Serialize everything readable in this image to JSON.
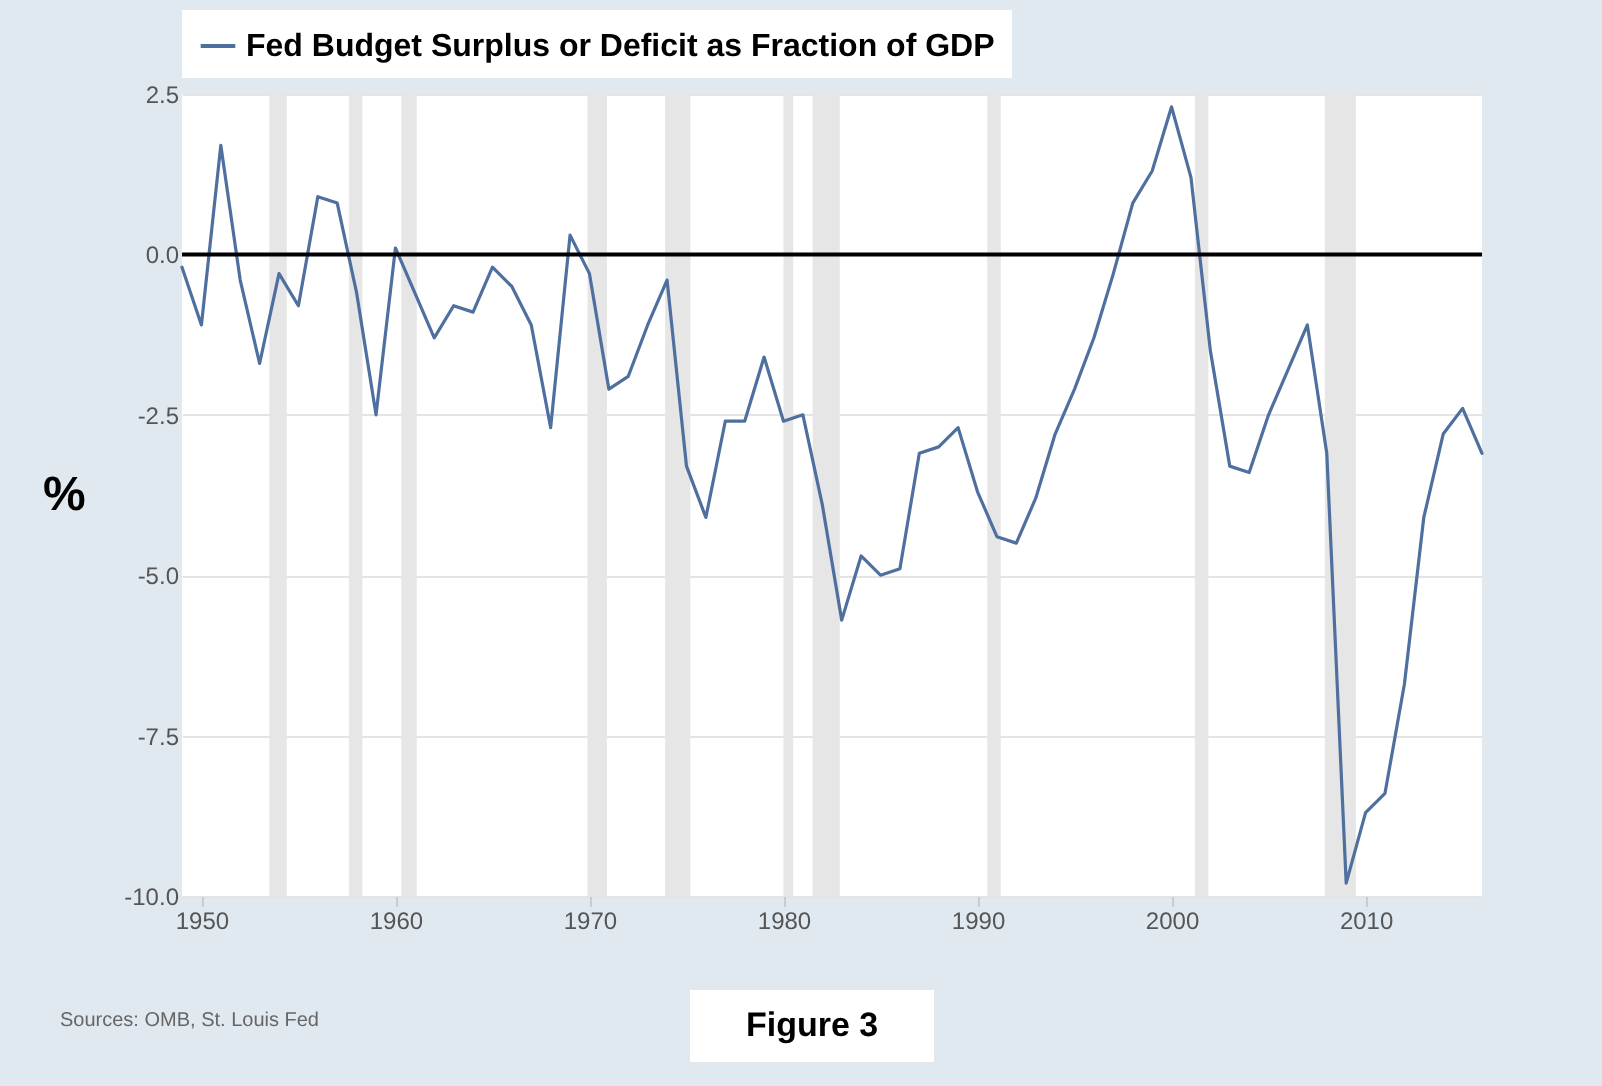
{
  "chart_data": {
    "type": "line",
    "ylabel": "%",
    "x": [
      1949,
      1950,
      1951,
      1952,
      1953,
      1954,
      1955,
      1956,
      1957,
      1958,
      1959,
      1960,
      1961,
      1962,
      1963,
      1964,
      1965,
      1966,
      1967,
      1968,
      1969,
      1970,
      1971,
      1972,
      1973,
      1974,
      1975,
      1976,
      1977,
      1978,
      1979,
      1980,
      1981,
      1982,
      1983,
      1984,
      1985,
      1986,
      1987,
      1988,
      1989,
      1990,
      1991,
      1992,
      1993,
      1994,
      1995,
      1996,
      1997,
      1998,
      1999,
      2000,
      2001,
      2002,
      2003,
      2004,
      2005,
      2006,
      2007,
      2008,
      2009,
      2010,
      2011,
      2012,
      2013,
      2014,
      2015,
      2016
    ],
    "series": [
      {
        "name": "Fed Budget Surplus or Deficit as Fraction of GDP",
        "color": "#4f6f9f",
        "values": [
          -0.2,
          -1.1,
          1.7,
          -0.4,
          -1.7,
          -0.3,
          -0.8,
          0.9,
          0.8,
          -0.6,
          -2.5,
          0.1,
          -0.6,
          -1.3,
          -0.8,
          -0.9,
          -0.2,
          -0.5,
          -1.1,
          -2.7,
          0.3,
          -0.3,
          -2.1,
          -1.9,
          -1.1,
          -0.4,
          -3.3,
          -4.1,
          -2.6,
          -2.6,
          -1.6,
          -2.6,
          -2.5,
          -3.9,
          -5.7,
          -4.7,
          -5.0,
          -4.9,
          -3.1,
          -3.0,
          -2.7,
          -3.7,
          -4.4,
          -4.5,
          -3.8,
          -2.8,
          -2.1,
          -1.3,
          -0.3,
          0.8,
          1.3,
          2.3,
          1.2,
          -1.5,
          -3.3,
          -3.4,
          -2.5,
          -1.8,
          -1.1,
          -3.1,
          -9.8,
          -8.7,
          -8.4,
          -6.7,
          -4.1,
          -2.8,
          -2.4,
          -3.1
        ]
      }
    ],
    "xlim": [
      1949,
      2016
    ],
    "xticks": [
      1950,
      1960,
      1970,
      1980,
      1990,
      2000,
      2010
    ],
    "ylim": [
      -10,
      2.5
    ],
    "yticks": [
      {
        "value": 2.5,
        "label": "2.5"
      },
      {
        "value": 0,
        "label": "0.0"
      },
      {
        "value": -2.5,
        "label": "-2.5"
      },
      {
        "value": -5,
        "label": "-5.0"
      },
      {
        "value": -7.5,
        "label": "-7.5"
      },
      {
        "value": -10,
        "label": "-10.0"
      }
    ],
    "ref_lines": [
      {
        "axis": "y",
        "value": 0,
        "color": "#000000"
      }
    ],
    "bands": [
      {
        "axis": "x",
        "from": 1953.5,
        "to": 1954.4,
        "color": "#e6e6e6"
      },
      {
        "axis": "x",
        "from": 1957.6,
        "to": 1958.3,
        "color": "#e6e6e6"
      },
      {
        "axis": "x",
        "from": 1960.3,
        "to": 1961.1,
        "color": "#e6e6e6"
      },
      {
        "axis": "x",
        "from": 1969.9,
        "to": 1970.9,
        "color": "#e6e6e6"
      },
      {
        "axis": "x",
        "from": 1973.9,
        "to": 1975.2,
        "color": "#e6e6e6"
      },
      {
        "axis": "x",
        "from": 1980.0,
        "to": 1980.5,
        "color": "#e6e6e6"
      },
      {
        "axis": "x",
        "from": 1981.5,
        "to": 1982.9,
        "color": "#e6e6e6"
      },
      {
        "axis": "x",
        "from": 1990.5,
        "to": 1991.2,
        "color": "#e6e6e6"
      },
      {
        "axis": "x",
        "from": 2001.2,
        "to": 2001.9,
        "color": "#e6e6e6"
      },
      {
        "axis": "x",
        "from": 2007.9,
        "to": 2009.5,
        "color": "#e6e6e6"
      }
    ],
    "grid": "y",
    "legend": "top",
    "line_style": "solid",
    "annotations": [
      "Sources: OMB, St. Louis Fed",
      "Figure 3"
    ]
  }
}
